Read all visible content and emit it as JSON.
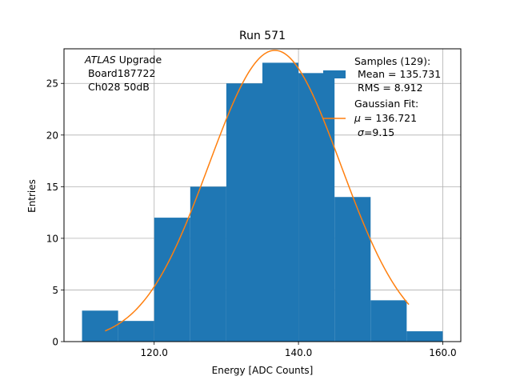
{
  "chart_data": {
    "type": "bar",
    "title": "Run 571",
    "xlabel": "Energy [ADC Counts]",
    "ylabel": "Entries",
    "xlim": [
      107.5,
      162.5
    ],
    "ylim": [
      0,
      28.35
    ],
    "grid": true,
    "x_ticks": [
      120.0,
      140.0,
      160.0
    ],
    "x_tick_labels": [
      "120.0",
      "140.0",
      "160.0"
    ],
    "y_ticks": [
      0,
      5,
      10,
      15,
      20,
      25
    ],
    "y_tick_labels": [
      "0",
      "5",
      "10",
      "15",
      "20",
      "25"
    ],
    "bin_edges": [
      110,
      115,
      120,
      125,
      130,
      135,
      140,
      145,
      150,
      155,
      160
    ],
    "values": [
      3,
      2,
      12,
      15,
      25,
      27,
      26,
      14,
      4,
      1
    ],
    "bar_color": "#1f77b4",
    "annotation": {
      "italic": "ATLAS",
      "rest": " Upgrade",
      "line2": " Board187722",
      "line3": " Ch028 50dB"
    },
    "legend": {
      "placement": "top-right",
      "samples_title": "Samples (129):",
      "samples_mean": " Mean = 135.731",
      "samples_rms": " RMS = 8.912",
      "fit_title": "Gaussian Fit:",
      "fit_mu_symbol": "μ",
      "fit_mu_value": " = 136.721",
      "fit_sigma_symbol": "σ",
      "fit_sigma_value": "=9.15"
    },
    "fit": {
      "name": "Gaussian Fit",
      "color": "#ff7f0e",
      "amplitude": 28.2,
      "mu": 136.721,
      "sigma": 9.15,
      "x_range": [
        113.2,
        155.3
      ]
    }
  }
}
